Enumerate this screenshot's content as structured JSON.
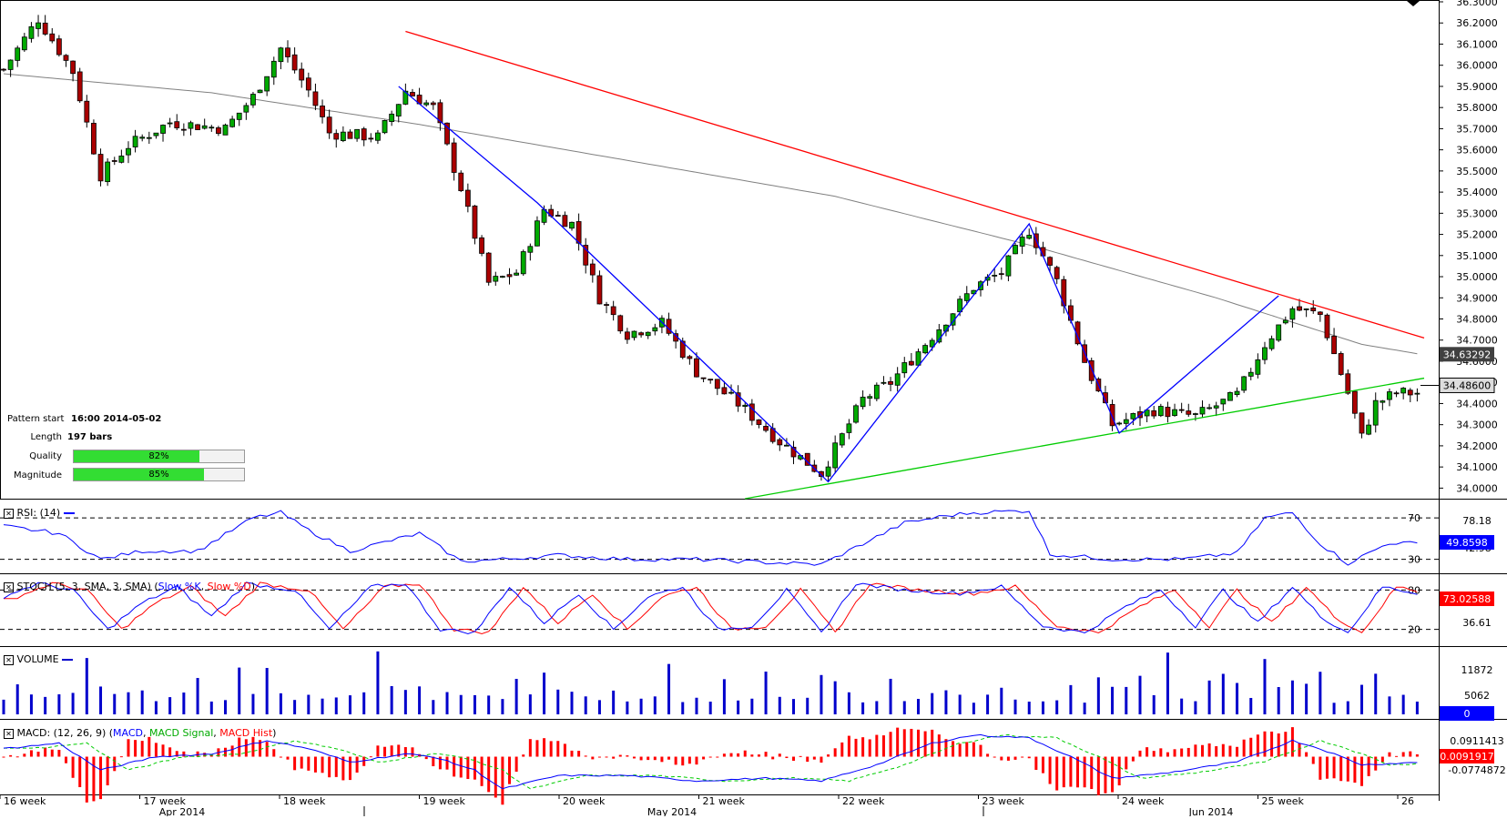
{
  "chart_data": {
    "type": "candlestick",
    "instrument_scale": "price",
    "price_axis": {
      "min": 33.95,
      "max": 36.3,
      "ticks": [
        "34.0000",
        "34.1000",
        "34.2000",
        "34.3000",
        "34.4000",
        "34.5000",
        "34.6000",
        "34.7000",
        "34.8000",
        "34.9000",
        "35.0000",
        "35.1000",
        "35.2000",
        "35.3000",
        "35.4000",
        "35.5000",
        "35.6000",
        "35.7000",
        "35.8000",
        "35.9000",
        "36.0000",
        "36.1000",
        "36.2000",
        "36.3000"
      ],
      "current_price_label": "34.48600",
      "current_price": 34.486,
      "ma_label": "34.63292",
      "ma_value": 34.633
    },
    "candle_count": 205,
    "candle_anchors": [
      [
        0,
        35.98
      ],
      [
        5,
        36.22
      ],
      [
        10,
        35.97
      ],
      [
        14,
        35.48
      ],
      [
        18,
        35.62
      ],
      [
        24,
        35.73
      ],
      [
        32,
        35.7
      ],
      [
        36,
        35.85
      ],
      [
        40,
        36.08
      ],
      [
        44,
        35.88
      ],
      [
        47,
        35.68
      ],
      [
        54,
        35.66
      ],
      [
        58,
        35.88
      ],
      [
        62,
        35.8
      ],
      [
        66,
        35.42
      ],
      [
        70,
        34.97
      ],
      [
        74,
        35.02
      ],
      [
        78,
        35.32
      ],
      [
        82,
        35.25
      ],
      [
        86,
        34.9
      ],
      [
        90,
        34.73
      ],
      [
        95,
        34.78
      ],
      [
        100,
        34.55
      ],
      [
        106,
        34.4
      ],
      [
        112,
        34.22
      ],
      [
        118,
        34.07
      ],
      [
        124,
        34.42
      ],
      [
        128,
        34.5
      ],
      [
        134,
        34.72
      ],
      [
        140,
        34.95
      ],
      [
        144,
        35.02
      ],
      [
        148,
        35.22
      ],
      [
        152,
        34.98
      ],
      [
        156,
        34.6
      ],
      [
        160,
        34.3
      ],
      [
        166,
        34.37
      ],
      [
        172,
        34.34
      ],
      [
        178,
        34.44
      ],
      [
        182,
        34.68
      ],
      [
        186,
        34.85
      ],
      [
        190,
        34.82
      ],
      [
        194,
        34.45
      ],
      [
        196,
        34.24
      ],
      [
        198,
        34.4
      ],
      [
        201,
        34.45
      ]
    ],
    "pattern_lines": {
      "resistance": {
        "from": [
          58,
          36.16
        ],
        "to": [
          205,
          34.71
        ],
        "color": "#ff0000"
      },
      "support": {
        "from": [
          107,
          33.95
        ],
        "to": [
          205,
          34.52
        ],
        "color": "#00cc00"
      },
      "zigzag": {
        "points": [
          [
            57,
            35.9
          ],
          [
            77,
            35.35
          ],
          [
            119,
            34.03
          ],
          [
            148,
            35.25
          ],
          [
            161,
            34.26
          ],
          [
            184,
            34.91
          ]
        ],
        "color": "#0000ff"
      }
    },
    "moving_average_anchors": [
      [
        0,
        35.96
      ],
      [
        30,
        35.87
      ],
      [
        60,
        35.72
      ],
      [
        90,
        35.55
      ],
      [
        120,
        35.38
      ],
      [
        148,
        35.15
      ],
      [
        175,
        34.9
      ],
      [
        196,
        34.68
      ],
      [
        205,
        34.63
      ]
    ],
    "x_axis": {
      "week_labels": [
        "16 week",
        "17 week",
        "18 week",
        "19 week",
        "20 week",
        "21 week",
        "22 week",
        "23 week",
        "24 week",
        "25 week",
        "26"
      ],
      "month_labels": [
        "Apr 2014",
        "May 2014",
        "Jun 2014"
      ]
    },
    "rsi": {
      "title": "RSI: (14)",
      "levels": [
        "70",
        "30"
      ],
      "axis_labels": [
        "78.18",
        "42.98"
      ],
      "current": "49.8598",
      "range": [
        20,
        85
      ],
      "level_values": [
        70,
        30
      ],
      "anchors": [
        [
          0,
          62
        ],
        [
          8,
          55
        ],
        [
          14,
          30
        ],
        [
          20,
          38
        ],
        [
          28,
          38
        ],
        [
          36,
          70
        ],
        [
          40,
          75
        ],
        [
          44,
          58
        ],
        [
          50,
          38
        ],
        [
          60,
          55
        ],
        [
          66,
          28
        ],
        [
          72,
          30
        ],
        [
          80,
          34
        ],
        [
          90,
          30
        ],
        [
          100,
          30
        ],
        [
          110,
          27
        ],
        [
          118,
          25
        ],
        [
          124,
          45
        ],
        [
          130,
          65
        ],
        [
          136,
          72
        ],
        [
          140,
          75
        ],
        [
          148,
          77
        ],
        [
          151,
          35
        ],
        [
          160,
          30
        ],
        [
          170,
          30
        ],
        [
          178,
          36
        ],
        [
          182,
          70
        ],
        [
          186,
          75
        ],
        [
          190,
          45
        ],
        [
          194,
          26
        ],
        [
          200,
          46
        ],
        [
          205,
          45
        ]
      ]
    },
    "stoch": {
      "title": "STOCH (5, 3, SMA, 3, SMA)",
      "legend": [
        {
          "name": "Slow %K",
          "color": "#0000ff"
        },
        {
          "name": "Slow %D",
          "color": "#ff0000"
        }
      ],
      "levels": [
        "80",
        "20"
      ],
      "axis_labels": [
        "36.61"
      ],
      "current": "73.02588",
      "range": [
        0,
        100
      ],
      "level_values": [
        80,
        20
      ],
      "k_anchors": [
        [
          0,
          70
        ],
        [
          5,
          90
        ],
        [
          10,
          80
        ],
        [
          15,
          20
        ],
        [
          20,
          60
        ],
        [
          25,
          85
        ],
        [
          30,
          40
        ],
        [
          35,
          90
        ],
        [
          42,
          80
        ],
        [
          47,
          20
        ],
        [
          53,
          85
        ],
        [
          58,
          90
        ],
        [
          63,
          20
        ],
        [
          68,
          15
        ],
        [
          73,
          85
        ],
        [
          78,
          30
        ],
        [
          83,
          75
        ],
        [
          88,
          20
        ],
        [
          93,
          70
        ],
        [
          98,
          85
        ],
        [
          103,
          20
        ],
        [
          108,
          25
        ],
        [
          113,
          80
        ],
        [
          118,
          15
        ],
        [
          123,
          90
        ],
        [
          130,
          80
        ],
        [
          138,
          75
        ],
        [
          144,
          85
        ],
        [
          150,
          25
        ],
        [
          156,
          15
        ],
        [
          162,
          55
        ],
        [
          167,
          80
        ],
        [
          172,
          25
        ],
        [
          176,
          80
        ],
        [
          181,
          30
        ],
        [
          186,
          85
        ],
        [
          190,
          40
        ],
        [
          194,
          15
        ],
        [
          199,
          85
        ],
        [
          205,
          73
        ]
      ],
      "d_shift": 2
    },
    "volume": {
      "title": "VOLUME",
      "axis_labels": [
        "11872",
        "5062"
      ],
      "current": "0",
      "max": 14000,
      "bars_every": 2
    },
    "macd": {
      "title": "MACD: (12, 26, 9)",
      "legend": [
        {
          "name": "MACD",
          "color": "#0000ff"
        },
        {
          "name": "MACD Signal",
          "color": "#00cc00"
        },
        {
          "name": "MACD Hist",
          "color": "#ff0000"
        }
      ],
      "axis_labels": [
        "0.0911413",
        "-0.0774872"
      ],
      "current": "0.0091917",
      "range": [
        -0.13,
        0.12
      ],
      "macd_anchors": [
        [
          0,
          0.03
        ],
        [
          8,
          0.05
        ],
        [
          14,
          -0.05
        ],
        [
          22,
          0.0
        ],
        [
          30,
          0.01
        ],
        [
          38,
          0.06
        ],
        [
          44,
          0.03
        ],
        [
          50,
          -0.02
        ],
        [
          58,
          0.01
        ],
        [
          62,
          0.0
        ],
        [
          68,
          -0.05
        ],
        [
          72,
          -0.12
        ],
        [
          80,
          -0.07
        ],
        [
          90,
          -0.07
        ],
        [
          100,
          -0.09
        ],
        [
          110,
          -0.08
        ],
        [
          118,
          -0.09
        ],
        [
          126,
          -0.03
        ],
        [
          134,
          0.05
        ],
        [
          140,
          0.08
        ],
        [
          148,
          0.07
        ],
        [
          154,
          0.0
        ],
        [
          160,
          -0.08
        ],
        [
          168,
          -0.06
        ],
        [
          178,
          -0.02
        ],
        [
          186,
          0.06
        ],
        [
          190,
          0.03
        ],
        [
          196,
          -0.03
        ],
        [
          205,
          -0.02
        ]
      ],
      "signal_shift": 4
    },
    "pattern_info": {
      "start_label": "Pattern start",
      "start_value": "16:00 2014-05-02",
      "length_label": "Length",
      "length_value": "197 bars",
      "quality_label": "Quality",
      "quality_value": "82%",
      "quality_pct": 82,
      "magnitude_label": "Magnitude",
      "magnitude_value": "85%",
      "magnitude_pct": 85
    },
    "colors": {
      "candle_body": "#000000",
      "bull_fill": "#00aa00",
      "bear_fill": "#aa0000",
      "ma_line": "#808080",
      "indicator_line": "#0000ff",
      "volume_bar": "#0000cc",
      "current_box": "#0000ff",
      "stoch_box": "#ff0000"
    }
  }
}
